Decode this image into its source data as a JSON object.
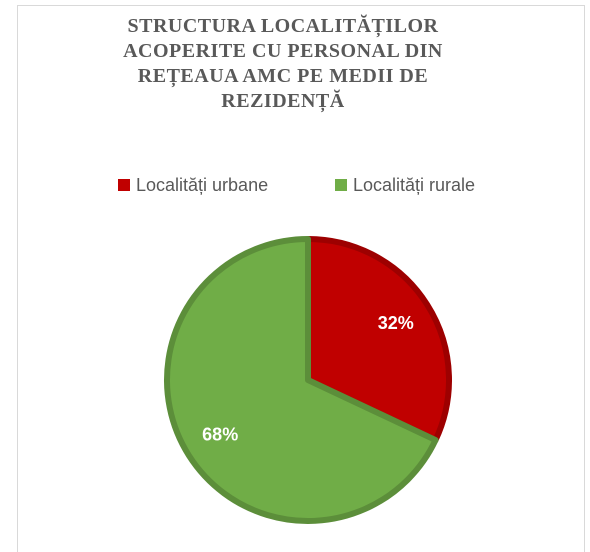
{
  "chart_data": {
    "type": "pie",
    "title": "STRUCTURA LOCALITĂȚILOR ACOPERITE CU PERSONAL DIN REȚEAUA AMC PE MEDII DE REZIDENȚĂ",
    "categories": [
      "Localități urbane",
      "Localități rurale"
    ],
    "values": [
      32,
      68
    ],
    "value_labels": [
      "32%",
      "68%"
    ],
    "colors": [
      "#c00000",
      "#70ad47"
    ],
    "legend": "top"
  }
}
